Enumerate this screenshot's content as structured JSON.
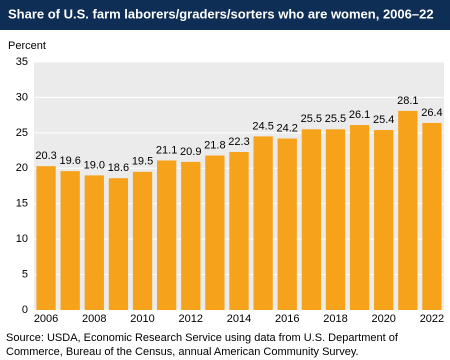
{
  "chart_data": {
    "type": "bar",
    "title": "Share of U.S. farm laborers/graders/sorters who are women, 2006–22",
    "y_label": "Percent",
    "source": [
      "Source: USDA, Economic Research Service using data from U.S. Department of",
      "Commerce, Bureau of the Census, annual American Community Survey."
    ],
    "categories": [
      "2006",
      null,
      "2008",
      null,
      "2010",
      null,
      "2012",
      null,
      "2014",
      null,
      "2016",
      null,
      "2018",
      null,
      "2020",
      null,
      "2022"
    ],
    "values": [
      20.3,
      19.6,
      19.0,
      18.6,
      19.5,
      21.1,
      20.9,
      21.8,
      22.3,
      24.5,
      24.2,
      25.5,
      25.5,
      26.1,
      25.4,
      28.1,
      26.4
    ],
    "value_labels": [
      "20.3",
      "19.6",
      "19.0",
      "18.6",
      "19.5",
      "21.1",
      "20.9",
      "21.8",
      "22.3",
      "24.5",
      "24.2",
      "25.5",
      "25.5",
      "26.1",
      "25.4",
      "28.1",
      "26.4"
    ],
    "color": "#f7a21b",
    "ylim": [
      0,
      35
    ],
    "yticks": [
      0,
      5,
      10,
      15,
      20,
      25,
      30,
      35
    ],
    "grid": true
  }
}
